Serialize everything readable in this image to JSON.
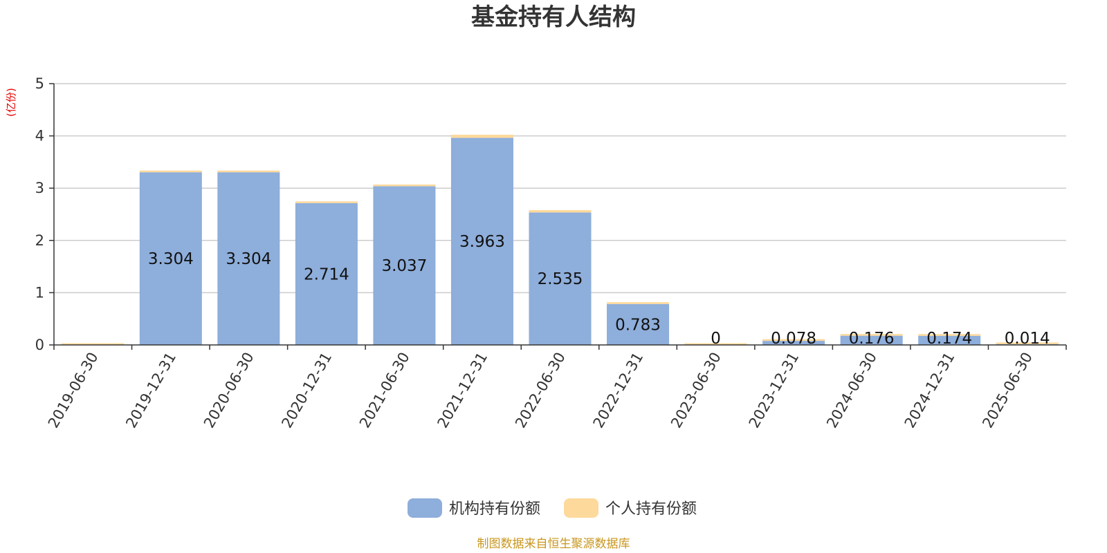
{
  "chart_data": {
    "type": "bar",
    "stacked": true,
    "title": "基金持有人结构",
    "unit_label": "(亿份)",
    "ylim": [
      0,
      5
    ],
    "yticks": [
      "0",
      "1",
      "2",
      "3",
      "4",
      "5"
    ],
    "grid": true,
    "legend_position": "bottom",
    "categories": [
      "2019-06-30",
      "2019-12-31",
      "2020-06-30",
      "2020-12-31",
      "2021-06-30",
      "2021-12-31",
      "2022-06-30",
      "2022-12-31",
      "2023-06-30",
      "2023-12-31",
      "2024-06-30",
      "2024-12-31",
      "2025-06-30"
    ],
    "series": [
      {
        "name": "机构持有份额",
        "color": "#8eaedb",
        "values": [
          0,
          3.304,
          3.304,
          2.714,
          3.037,
          3.963,
          2.535,
          0.783,
          0,
          0.078,
          0.176,
          0.174,
          0.014
        ],
        "labels": [
          "",
          "3.304",
          "3.304",
          "2.714",
          "3.037",
          "3.963",
          "2.535",
          "0.783",
          "0",
          "0.078",
          "0.176",
          "0.174",
          "0.014"
        ]
      },
      {
        "name": "个人持有份额",
        "color": "#fdd99b",
        "values": [
          0.02,
          0.02,
          0.02,
          0.015,
          0.03,
          0.06,
          0.045,
          0.035,
          0.02,
          0.02,
          0.025,
          0.025,
          0.015
        ]
      }
    ],
    "source": "制图数据来自恒生聚源数据库"
  }
}
